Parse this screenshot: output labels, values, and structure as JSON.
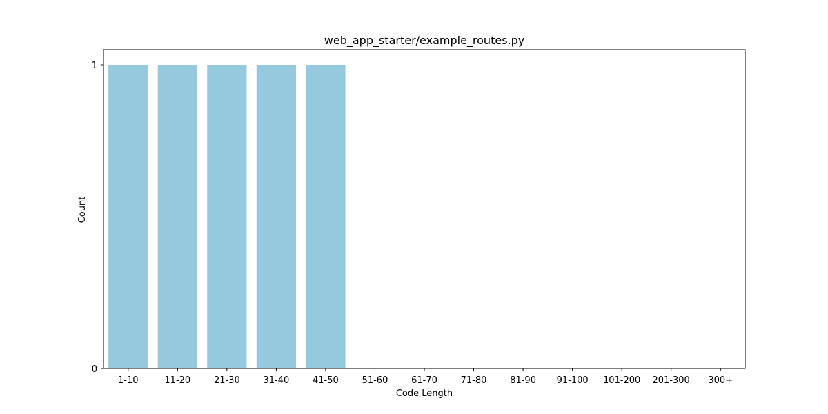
{
  "chart_data": {
    "type": "bar",
    "title": "web_app_starter/example_routes.py",
    "xlabel": "Code Length",
    "ylabel": "Count",
    "categories": [
      "1-10",
      "11-20",
      "21-30",
      "31-40",
      "41-50",
      "51-60",
      "61-70",
      "71-80",
      "81-90",
      "91-100",
      "101-200",
      "201-300",
      "300+"
    ],
    "values": [
      1,
      1,
      1,
      1,
      1,
      0,
      0,
      0,
      0,
      0,
      0,
      0,
      0
    ],
    "y_ticks": [
      0,
      1
    ],
    "ylim": [
      0,
      1.05
    ],
    "grid": false,
    "bar_color": "#95c9de"
  }
}
